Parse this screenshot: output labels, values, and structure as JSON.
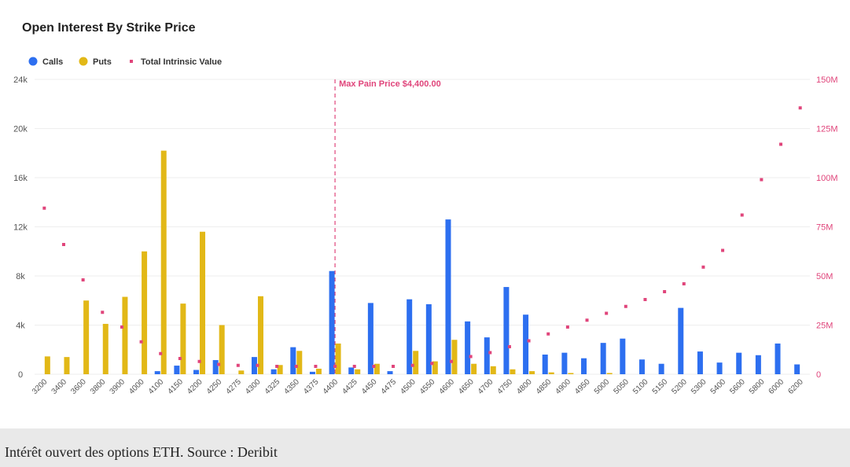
{
  "colors": {
    "calls": "#2d6ff0",
    "puts": "#e2b817",
    "intrinsic": "#e0457b",
    "grid": "#eeeeee",
    "caption_bg": "#e9e9e9"
  },
  "caption": "Intérêt ouvert des options ETH. Source : Deribit",
  "chart_data": {
    "type": "bar",
    "title": "Open Interest By Strike Price",
    "legend_position": "top-left",
    "grid": true,
    "categories": [
      "3200",
      "3400",
      "3600",
      "3800",
      "3900",
      "4000",
      "4100",
      "4150",
      "4200",
      "4250",
      "4275",
      "4300",
      "4325",
      "4350",
      "4375",
      "4400",
      "4425",
      "4450",
      "4475",
      "4500",
      "4550",
      "4600",
      "4650",
      "4700",
      "4750",
      "4800",
      "4850",
      "4900",
      "4950",
      "5000",
      "5050",
      "5100",
      "5150",
      "5200",
      "5300",
      "5400",
      "5600",
      "5800",
      "6000",
      "6200"
    ],
    "series": [
      {
        "name": "Calls",
        "type": "bar",
        "axis": "left",
        "values": [
          0,
          0,
          0,
          0,
          0,
          0,
          250,
          700,
          350,
          1150,
          0,
          1400,
          400,
          2200,
          200,
          8400,
          550,
          5800,
          250,
          6100,
          5700,
          12600,
          4300,
          3000,
          7100,
          4850,
          1600,
          1750,
          1300,
          2550,
          2900,
          1200,
          850,
          5400,
          1850,
          950,
          1750,
          1550,
          2500,
          800
        ]
      },
      {
        "name": "Puts",
        "type": "bar",
        "axis": "left",
        "values": [
          1450,
          1400,
          6000,
          4100,
          6300,
          10000,
          18200,
          5750,
          11600,
          4000,
          300,
          6350,
          750,
          1900,
          450,
          2500,
          400,
          850,
          0,
          1900,
          1050,
          2800,
          850,
          650,
          400,
          250,
          150,
          100,
          0,
          100,
          0,
          0,
          0,
          0,
          0,
          0,
          0,
          0,
          0,
          0
        ]
      },
      {
        "name": "Total Intrinsic Value",
        "type": "scatter",
        "axis": "right",
        "values": [
          84500000,
          66000000,
          48000000,
          31500000,
          24000000,
          16500000,
          10500000,
          8000000,
          6500000,
          5000000,
          4500000,
          4500000,
          4000000,
          4000000,
          4000000,
          4000000,
          4000000,
          4000000,
          4000000,
          4500000,
          5500000,
          6500000,
          9000000,
          11000000,
          14000000,
          17000000,
          20500000,
          24000000,
          27500000,
          31000000,
          34500000,
          38000000,
          42000000,
          46000000,
          54500000,
          63000000,
          81000000,
          99000000,
          117000000,
          135500000
        ]
      }
    ],
    "y_left": {
      "ticks": [
        "0",
        "4k",
        "8k",
        "12k",
        "16k",
        "20k",
        "24k"
      ],
      "ylim": [
        0,
        24000
      ]
    },
    "y_right": {
      "ticks": [
        "0",
        "25M",
        "50M",
        "75M",
        "100M",
        "125M",
        "150M"
      ],
      "ylim": [
        0,
        150000000
      ]
    },
    "annotations": [
      {
        "x": "4400",
        "label": "Max Pain Price $4,400.00"
      }
    ]
  }
}
